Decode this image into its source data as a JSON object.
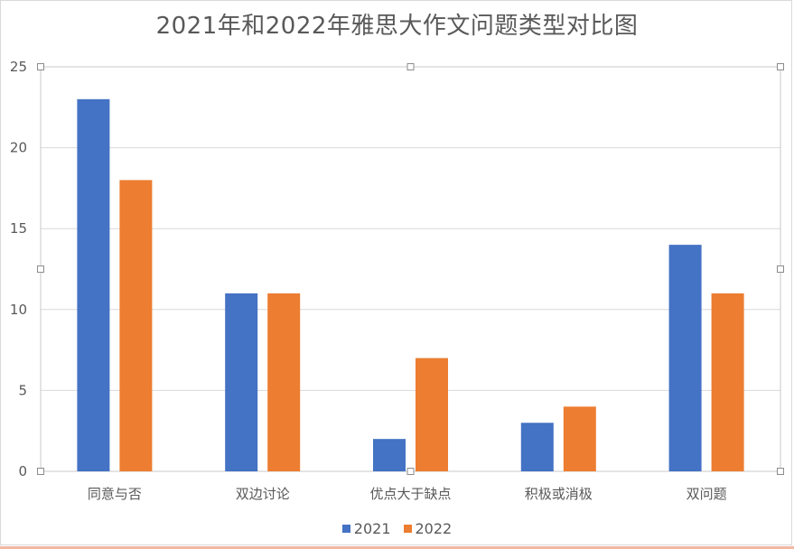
{
  "chart_data": {
    "type": "bar",
    "title": "2021年和2022年雅思大作文问题类型对比图",
    "categories": [
      "同意与否",
      "双边讨论",
      "优点大于缺点",
      "积极或消极",
      "双问题"
    ],
    "series": [
      {
        "name": "2021",
        "values": [
          23,
          11,
          2,
          3,
          14
        ],
        "color": "#4472c4"
      },
      {
        "name": "2022",
        "values": [
          18,
          11,
          7,
          4,
          11
        ],
        "color": "#ed7d31"
      }
    ],
    "yticks": [
      "0",
      "5",
      "10",
      "15",
      "20",
      "25"
    ],
    "ylim": [
      0,
      25
    ],
    "grid": true,
    "legend_position": "bottom"
  }
}
